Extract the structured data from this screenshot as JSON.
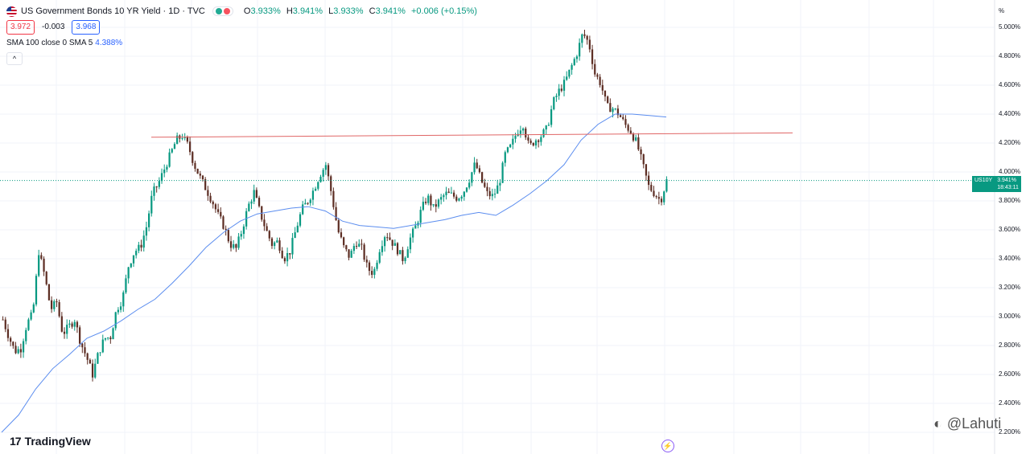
{
  "header": {
    "title": "US Government Bonds 10 YR Yield · 1D · TVC",
    "ohlc": [
      {
        "k": "O",
        "v": "3.933%"
      },
      {
        "k": "H",
        "v": "3.941%"
      },
      {
        "k": "L",
        "v": "3.933%"
      },
      {
        "k": "C",
        "v": "3.941%"
      }
    ],
    "change": "+0.006 (+0.15%)",
    "sell": "3.972",
    "spread": "-0.003",
    "buy": "3.968",
    "indicator_label": "SMA 100 close 0 SMA 5",
    "indicator_value": "4.388%",
    "collapse_glyph": "^"
  },
  "axis": {
    "unit": "%",
    "labels": [
      "5.000%",
      "4.800%",
      "4.600%",
      "4.400%",
      "4.200%",
      "4.000%",
      "3.800%",
      "3.600%",
      "3.400%",
      "3.200%",
      "3.000%",
      "2.800%",
      "2.600%",
      "2.400%",
      "2.200%"
    ]
  },
  "price_tag": {
    "symbol": "US10Y",
    "price": "3.941%",
    "countdown": "18:43:11"
  },
  "branding": {
    "logo": "TradingView",
    "logo_mark": "17",
    "watermark": "@Lahuti"
  },
  "colors": {
    "up": "#089981",
    "down": "#5d2e24",
    "sma": "#5b8def",
    "hline": "#e06666",
    "grid": "#f0f3fa"
  },
  "chart_data": {
    "type": "candlestick",
    "title": "US Government Bonds 10 YR Yield",
    "ylabel": "%",
    "ylim": [
      2.2,
      5.0
    ],
    "series": [
      {
        "name": "US10Y close",
        "values": [
          2.98,
          2.86,
          2.76,
          2.78,
          2.95,
          3.02,
          3.45,
          3.28,
          3.05,
          3.1,
          2.88,
          2.93,
          2.98,
          2.82,
          2.72,
          2.6,
          2.75,
          2.85,
          2.86,
          3.05,
          3.12,
          3.35,
          3.45,
          3.48,
          3.62,
          3.85,
          3.92,
          4.02,
          4.12,
          4.22,
          4.25,
          4.18,
          4.05,
          3.96,
          3.88,
          3.8,
          3.7,
          3.62,
          3.5,
          3.47,
          3.6,
          3.76,
          3.86,
          3.72,
          3.6,
          3.5,
          3.52,
          3.4,
          3.45,
          3.6,
          3.74,
          3.8,
          3.88,
          3.98,
          4.05,
          3.84,
          3.6,
          3.48,
          3.41,
          3.52,
          3.47,
          3.33,
          3.3,
          3.47,
          3.58,
          3.52,
          3.46,
          3.39,
          3.53,
          3.62,
          3.74,
          3.83,
          3.75,
          3.8,
          3.85,
          3.84,
          3.82,
          3.86,
          3.95,
          4.06,
          3.94,
          3.85,
          3.83,
          3.92,
          4.12,
          4.18,
          4.28,
          4.33,
          4.17,
          4.22,
          4.25,
          4.3,
          4.48,
          4.56,
          4.62,
          4.72,
          4.82,
          4.96,
          4.89,
          4.68,
          4.61,
          4.45,
          4.44,
          4.4,
          4.33,
          4.28,
          4.2,
          4.05,
          3.9,
          3.85,
          3.8,
          3.94
        ]
      },
      {
        "name": "SMA 100",
        "values": [
          2.2,
          2.32,
          2.5,
          2.64,
          2.74,
          2.85,
          2.9,
          2.97,
          3.05,
          3.12,
          3.23,
          3.35,
          3.48,
          3.58,
          3.66,
          3.71,
          3.73,
          3.75,
          3.76,
          3.73,
          3.66,
          3.63,
          3.62,
          3.61,
          3.63,
          3.65,
          3.67,
          3.7,
          3.72,
          3.7,
          3.77,
          3.85,
          3.94,
          4.05,
          4.22,
          4.33,
          4.4,
          4.4,
          4.39,
          4.38
        ]
      }
    ],
    "horizontal_line": [
      4.24,
      4.27
    ]
  }
}
